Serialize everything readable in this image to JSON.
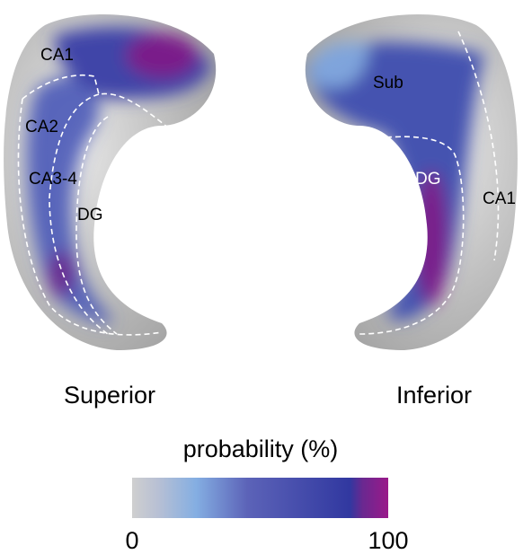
{
  "views": [
    {
      "title": "Superior",
      "regions": [
        "CA1",
        "CA2",
        "CA3-4",
        "DG"
      ]
    },
    {
      "title": "Inferior",
      "regions": [
        "Sub",
        "DG",
        "CA1"
      ]
    }
  ],
  "colorbar": {
    "title": "probability (%)",
    "min": 0,
    "max": 100
  }
}
